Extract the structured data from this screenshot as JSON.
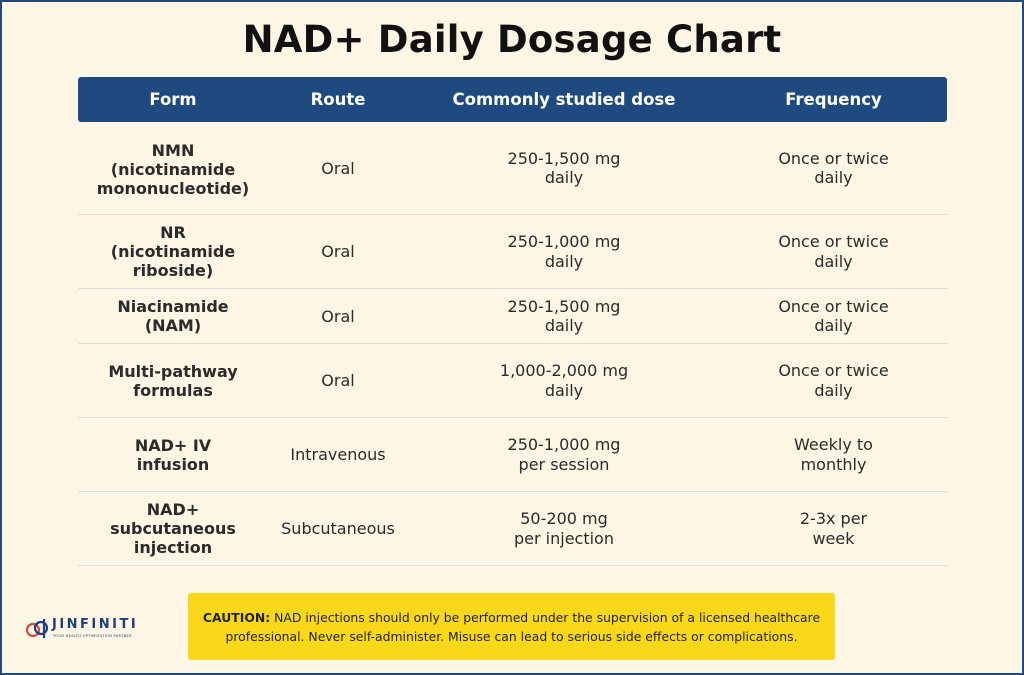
{
  "title": "NAD+ Daily Dosage Chart",
  "table": {
    "headers": [
      "Form",
      "Route",
      "Commonly studied dose",
      "Frequency"
    ],
    "rows": [
      {
        "form": [
          "NMN",
          "(nicotinamide",
          "mononucleotide)"
        ],
        "route": "Oral",
        "dose": [
          "250-1,500 mg",
          "daily"
        ],
        "frequency": [
          "Once or twice",
          "daily"
        ]
      },
      {
        "form": [
          "NR",
          "(nicotinamide",
          "riboside)"
        ],
        "route": "Oral",
        "dose": [
          "250-1,000 mg",
          "daily"
        ],
        "frequency": [
          "Once or twice",
          "daily"
        ]
      },
      {
        "form": [
          "Niacinamide",
          "(NAM)"
        ],
        "route": "Oral",
        "dose": [
          "250-1,500 mg",
          "daily"
        ],
        "frequency": [
          "Once or twice",
          "daily"
        ]
      },
      {
        "form": [
          "Multi-pathway",
          "formulas"
        ],
        "route": "Oral",
        "dose": [
          "1,000-2,000 mg",
          "daily"
        ],
        "frequency": [
          "Once or twice",
          "daily"
        ]
      },
      {
        "form": [
          "NAD+ IV",
          "infusion"
        ],
        "route": "Intravenous",
        "dose": [
          "250-1,000 mg",
          "per session"
        ],
        "frequency": [
          "Weekly to",
          "monthly"
        ]
      },
      {
        "form": [
          "NAD+",
          "subcutaneous",
          "injection"
        ],
        "route": "Subcutaneous",
        "dose": [
          "50-200 mg",
          "per injection"
        ],
        "frequency": [
          "2-3x per",
          "week"
        ]
      }
    ]
  },
  "caution": {
    "label": "CAUTION:",
    "text": " NAD injections should only be performed under the supervision of a licensed healthcare professional. Never self-administer. Misuse can lead to serious side effects or complications."
  },
  "logo": {
    "name": "JINFINITI",
    "tagline": "YOUR HEALTH OPTIMIZATION PARTNER"
  },
  "colors": {
    "background": "#fdf6e4",
    "header": "#1f4a80",
    "caution": "#f9d81a",
    "border": "#1f4a80"
  }
}
